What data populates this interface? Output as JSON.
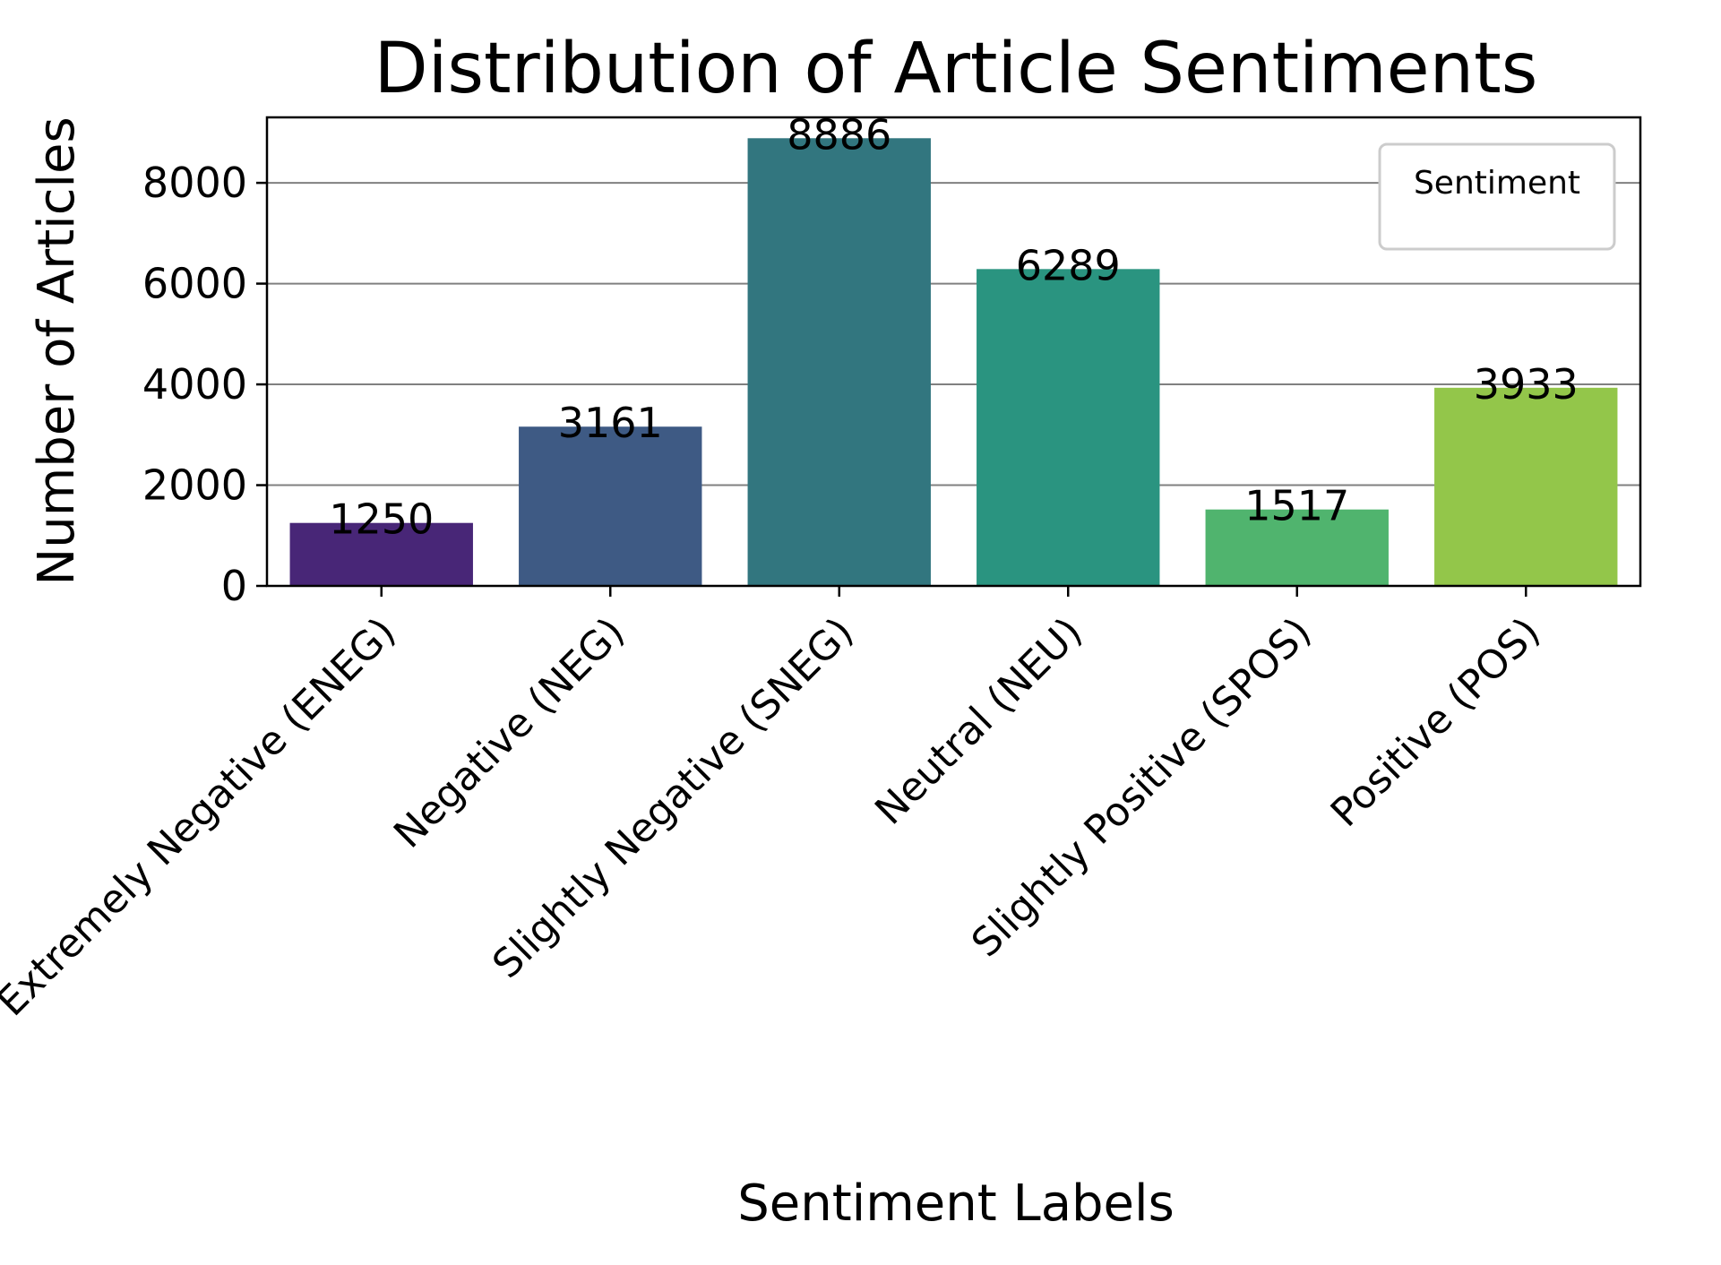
{
  "chart_data": {
    "type": "bar",
    "title": "Distribution of Article Sentiments",
    "xlabel": "Sentiment Labels",
    "ylabel": "Number of Articles",
    "categories": [
      "Extremely Negative (ENEG)",
      "Negative (NEG)",
      "Slightly Negative (SNEG)",
      "Neutral (NEU)",
      "Slightly Positive (SPOS)",
      "Positive (POS)"
    ],
    "values": [
      1250,
      3161,
      8886,
      6289,
      1517,
      3933
    ],
    "data_labels": [
      "1250",
      "3161",
      "8886",
      "6289",
      "1517",
      "3933"
    ],
    "colors": [
      "#482677",
      "#3e5a84",
      "#32767f",
      "#2a9480",
      "#50b46e",
      "#93c64a"
    ],
    "ylim": [
      0,
      9300
    ],
    "yticks": [
      0,
      2000,
      4000,
      6000,
      8000
    ],
    "ytick_labels": [
      "0",
      "2000",
      "4000",
      "6000",
      "8000"
    ],
    "grid": "horizontal",
    "legend": {
      "title": "Sentiment",
      "placement": "top-right"
    }
  }
}
